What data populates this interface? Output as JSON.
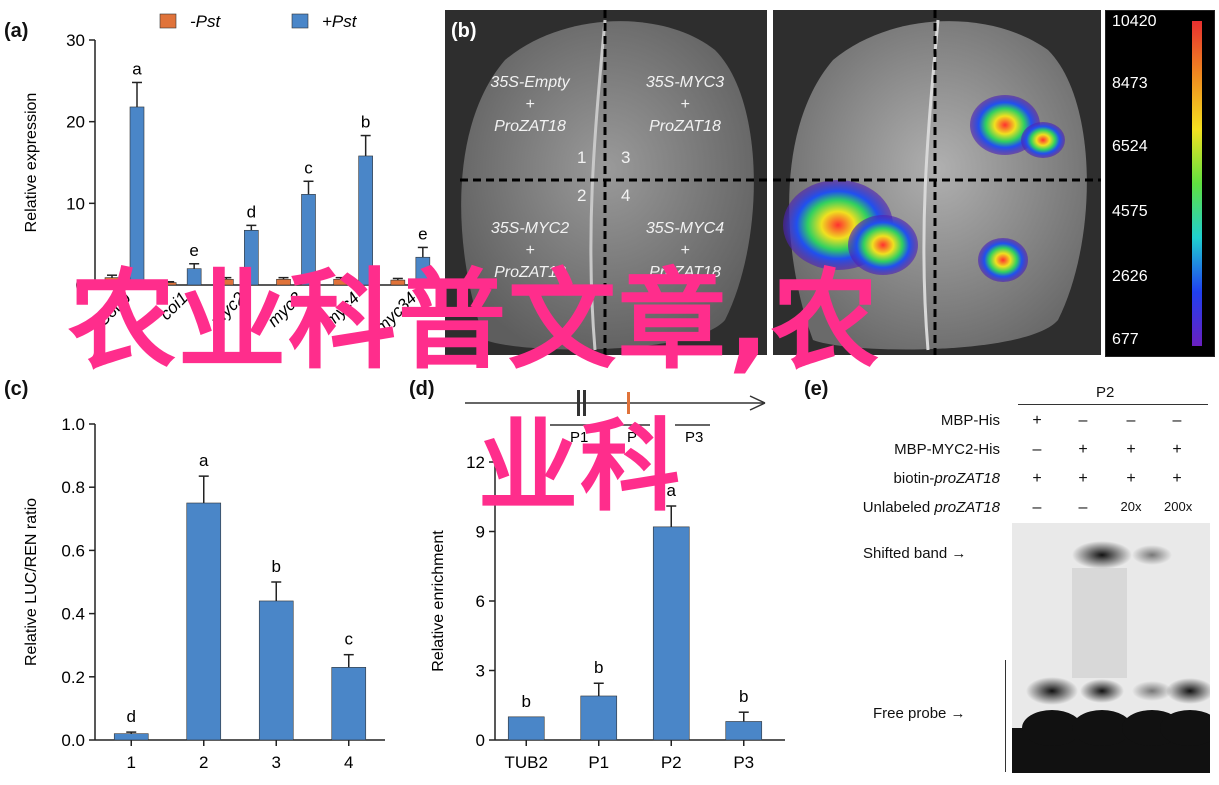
{
  "panel_a": {
    "letter": "(a)",
    "legend": [
      {
        "label": "-Pst",
        "color": "#e0733a"
      },
      {
        "label": "+Pst",
        "color": "#4a86c8"
      }
    ],
    "ylabel": "Relative expression",
    "yticks": [
      "0",
      "10",
      "20",
      "30"
    ],
    "categories": [
      "Col-0",
      "coi1",
      "myc2",
      "myc3",
      "myc4",
      "myc34"
    ]
  },
  "panel_b": {
    "letter": "(b)",
    "quadrants": [
      {
        "line1": "35S-Empty",
        "line2": "+",
        "line3": "ProZAT18"
      },
      {
        "line1": "35S-MYC3",
        "line2": "+",
        "line3": "ProZAT18"
      },
      {
        "line1": "35S-MYC2",
        "line2": "+",
        "line3": "ProZAT18"
      },
      {
        "line1": "35S-MYC4",
        "line2": "+",
        "line3": "ProZAT18"
      }
    ],
    "numbers": [
      "1",
      "3",
      "2",
      "4"
    ],
    "colorbar": [
      "10420",
      "8473",
      "6524",
      "4575",
      "2626",
      "677"
    ]
  },
  "panel_c": {
    "letter": "(c)",
    "ylabel": "Relative LUC/REN ratio",
    "yticks": [
      "0.0",
      "0.2",
      "0.4",
      "0.6",
      "0.8",
      "1.0"
    ]
  },
  "panel_d": {
    "letter": "(d)",
    "ylabel": "Relative enrichment",
    "yticks": [
      "0",
      "3",
      "6",
      "9",
      "12"
    ],
    "schematic": [
      "P1",
      "P",
      "P3"
    ]
  },
  "panel_e": {
    "letter": "(e)",
    "lane_header": "P2",
    "rows": [
      {
        "label": "MBP-His",
        "italic": "",
        "marks": [
          "+",
          "–",
          "–",
          "–"
        ]
      },
      {
        "label": "MBP-MYC2-His",
        "italic": "",
        "marks": [
          "–",
          "+",
          "+",
          "+"
        ]
      },
      {
        "label": "biotin-",
        "italic": "proZAT18",
        "marks": [
          "+",
          "+",
          "+",
          "+"
        ]
      },
      {
        "label": "Unlabeled ",
        "italic": "proZAT18",
        "marks": [
          "–",
          "–",
          "20x",
          "200x"
        ]
      }
    ],
    "shifted_band": "Shifted band",
    "free_probe": "Free probe"
  },
  "watermark": {
    "line1": "农业科普文章,农",
    "line2": "业科",
    "color": "#ff2d8c"
  },
  "chart_data": [
    {
      "type": "bar",
      "panel": "a",
      "categories": [
        "Col-0",
        "coi1",
        "myc2",
        "myc3",
        "myc4",
        "myc34"
      ],
      "series": [
        {
          "name": "-Pst",
          "values": [
            0.9,
            0.3,
            0.7,
            0.7,
            0.7,
            0.6
          ],
          "errors": [
            0.3,
            0.1,
            0.2,
            0.2,
            0.2,
            0.2
          ]
        },
        {
          "name": "+Pst",
          "values": [
            21.8,
            2.0,
            6.7,
            11.1,
            15.8,
            3.4
          ],
          "errors": [
            3.0,
            0.6,
            0.6,
            1.6,
            2.5,
            1.2
          ]
        }
      ],
      "letters": [
        "a",
        "e",
        "d",
        "c",
        "b",
        "e"
      ],
      "ylabel": "Relative expression",
      "ylim": [
        0,
        30
      ]
    },
    {
      "type": "bar",
      "panel": "c",
      "categories": [
        "1",
        "2",
        "3",
        "4"
      ],
      "values": [
        0.02,
        0.75,
        0.44,
        0.23
      ],
      "errors": [
        0.005,
        0.085,
        0.06,
        0.04
      ],
      "letters": [
        "d",
        "a",
        "b",
        "c"
      ],
      "ylabel": "Relative LUC/REN ratio",
      "ylim": [
        0,
        1.0
      ]
    },
    {
      "type": "bar",
      "panel": "d",
      "categories": [
        "TUB2",
        "P1",
        "P2",
        "P3"
      ],
      "values": [
        1.0,
        1.9,
        9.2,
        0.8
      ],
      "errors": [
        0.0,
        0.55,
        0.9,
        0.4
      ],
      "letters": [
        "b",
        "b",
        "a",
        "b"
      ],
      "ylabel": "Relative enrichment",
      "ylim": [
        0,
        12
      ]
    }
  ]
}
